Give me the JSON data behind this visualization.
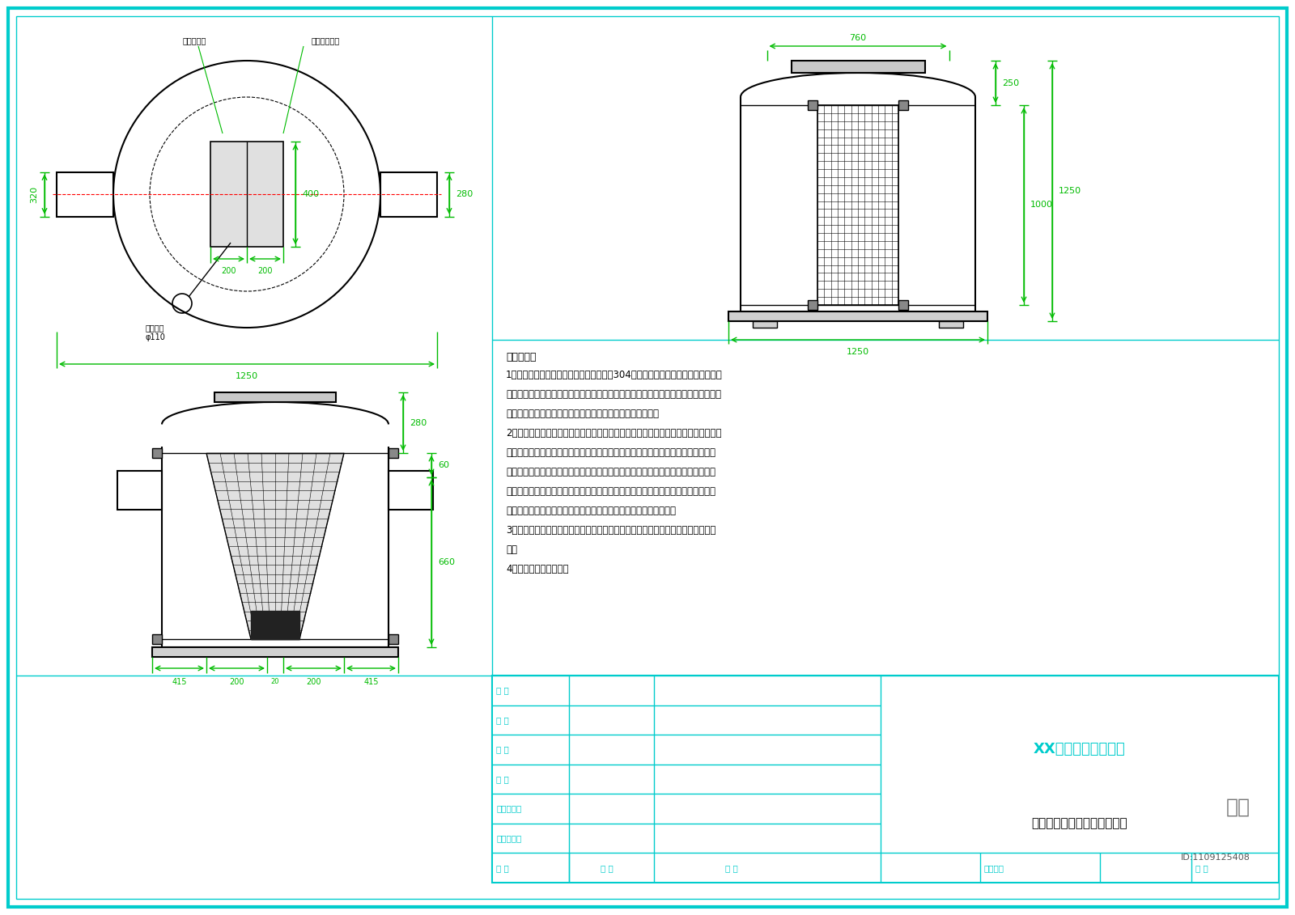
{
  "bg_color": "#ffffff",
  "border_color": "#00cccc",
  "dim_color": "#00bb00",
  "title": "XX建筑设计有限公司",
  "drawing_title": "截污过滤弃流一体化设备详图",
  "principle_title": "原理说明：",
  "principle_lines": [
    "1、本产品外壳材质为玻璃钢，内置不锈钢304提篮及过滤网，可有效拦截较大固体",
    "污染物，从而保护后续设备的正常运行，同时可有效的将前期浓度较高的污染物抛弃，",
    "实现前期污染物自动排放，便于后期干净的雨水过滤、收集。",
    "2、产品内置水流屋挡板、控制阀、控制球，不锈钢过滤网。当达到设定的弃流量时，",
    "排污口自动关闭，停止弃流，进行雨水收集，内置的不锈钢过滤网可以对收集的雨水",
    "进行过滤，过滤产生的污染物会留在排污口箱体内，降雨结束后，排污口自动打开，",
    "污染物将随剩余水流排出，装置恢复原状，等待下次降雨。并且内部配有精度高的不",
    "锈钢过滤网，在污染较轻的区域可直接达到生活杂用水的水质标准。",
    "3、本产品主要应用于前期雨水需收集处理，能够一体化实现截污沉淀过滤弃流等功",
    "能。",
    "4、本产品可直接地埋。"
  ],
  "table_rows": [
    "制 图",
    "设 计",
    "校 对",
    "审 核",
    "专业负责人",
    "工程负责人"
  ],
  "bottom_row_labels": [
    "比 例",
    "设计阶段",
    "图 号"
  ],
  "audit_label": "审 定",
  "date_label": "日 期",
  "id_text": "ID:1109125408"
}
